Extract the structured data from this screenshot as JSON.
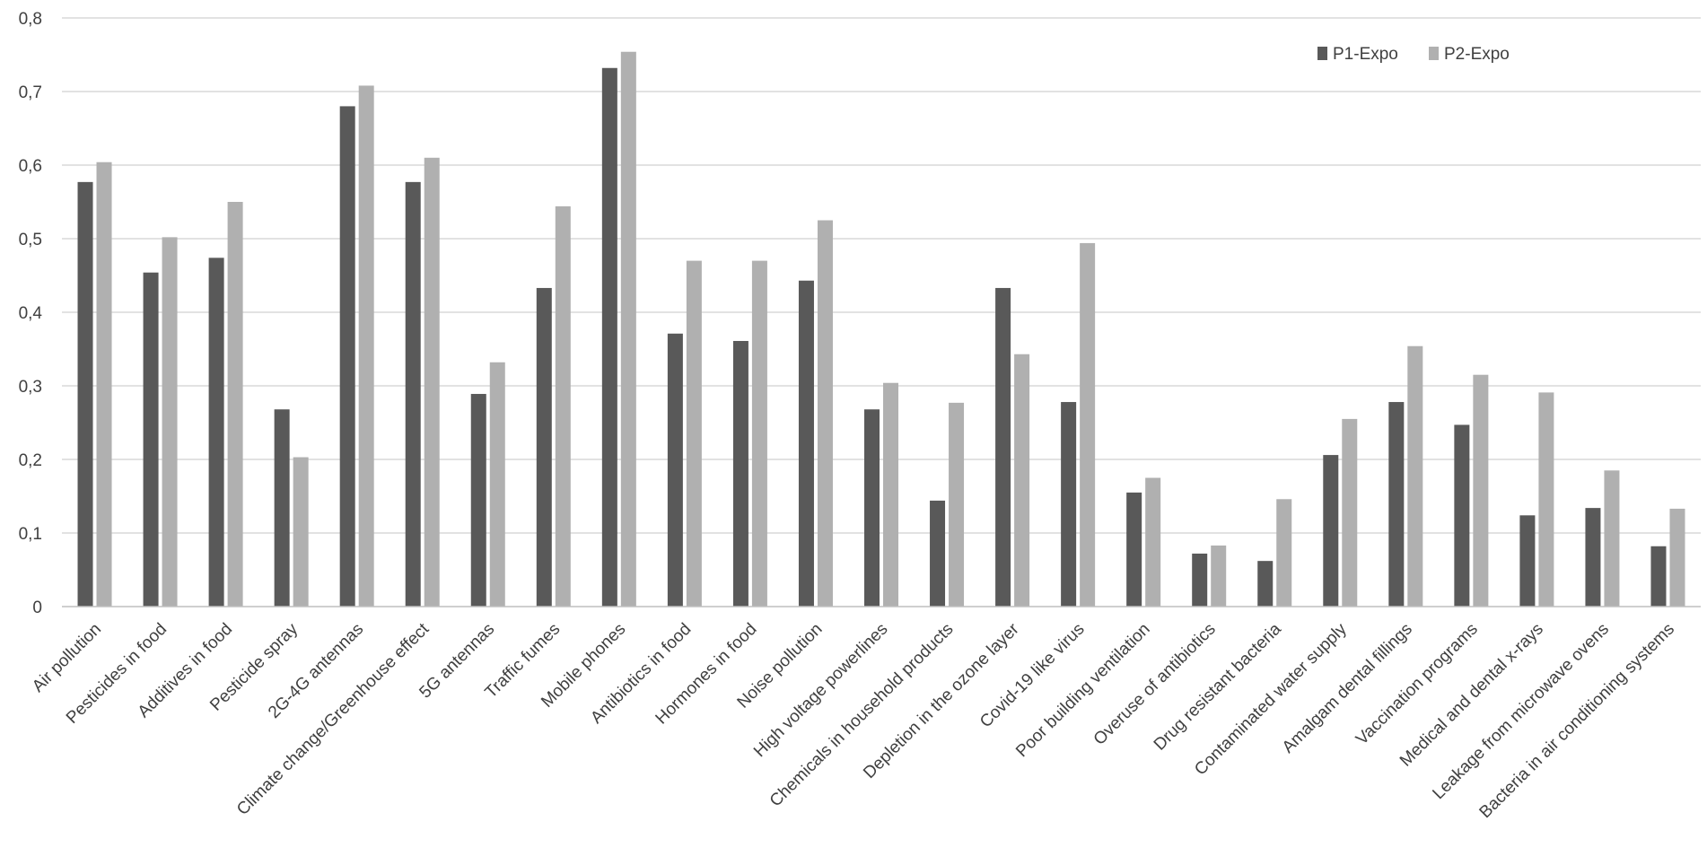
{
  "chart_data": {
    "type": "bar",
    "title": "",
    "xlabel": "",
    "ylabel": "",
    "ylim": [
      0,
      0.8
    ],
    "yticks": [
      "0",
      "0,1",
      "0,2",
      "0,3",
      "0,4",
      "0,5",
      "0,6",
      "0,7",
      "0,8"
    ],
    "grid": true,
    "legend_position": "top-right",
    "categories": [
      "Air pollution",
      "Pesticides in food",
      "Additives in food",
      "Pesticide spray",
      "2G-4G antennas",
      "Climate change/Greenhouse effect",
      "5G antennas",
      "Traffic fumes",
      "Mobile phones",
      "Antibiotics in food",
      "Hormones in food",
      "Noise pollution",
      "High voltage powerlines",
      "Chemicals in household products",
      "Depletion in the ozone layer",
      "Covid-19 like virus",
      "Poor building ventilation",
      "Overuse of antibiotics",
      "Drug resistant bacteria",
      "Contaminated water supply",
      "Amalgam dental fillings",
      "Vaccination programs",
      "Medical and dental x-rays",
      "Leakage from microwave ovens",
      "Bacteria in air conditioning systems"
    ],
    "series": [
      {
        "name": "P1-Expo",
        "color": "#595959",
        "values": [
          0.577,
          0.454,
          0.474,
          0.268,
          0.68,
          0.577,
          0.289,
          0.433,
          0.732,
          0.371,
          0.361,
          0.443,
          0.268,
          0.144,
          0.433,
          0.278,
          0.155,
          0.072,
          0.062,
          0.206,
          0.278,
          0.247,
          0.124,
          0.134,
          0.082
        ]
      },
      {
        "name": "P2-Expo",
        "color": "#b0b0b0",
        "values": [
          0.604,
          0.502,
          0.55,
          0.203,
          0.708,
          0.61,
          0.332,
          0.544,
          0.754,
          0.47,
          0.47,
          0.525,
          0.304,
          0.277,
          0.343,
          0.494,
          0.175,
          0.083,
          0.146,
          0.255,
          0.354,
          0.315,
          0.291,
          0.185,
          0.133
        ]
      }
    ]
  }
}
